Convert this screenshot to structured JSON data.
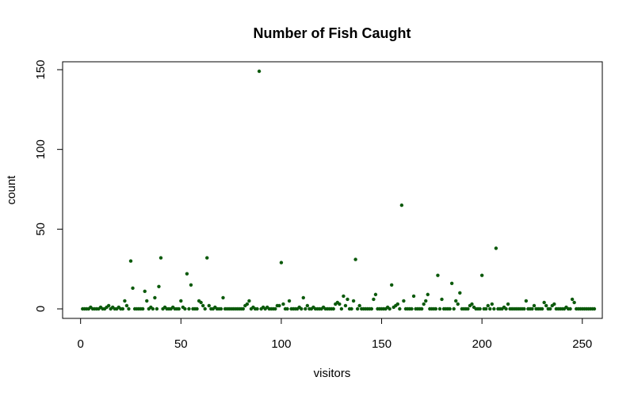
{
  "chart_data": {
    "type": "scatter",
    "title": "Number of Fish Caught",
    "xlabel": "visitors",
    "ylabel": "count",
    "xlim": [
      1,
      250
    ],
    "ylim": [
      0,
      149
    ],
    "x_ticks": [
      0,
      50,
      100,
      150,
      200,
      250
    ],
    "y_ticks": [
      0,
      50,
      100,
      150
    ],
    "grid": false,
    "point_color": "#0b5a0b",
    "series": [
      {
        "values": [
          0,
          0,
          0,
          0,
          1,
          0,
          0,
          0,
          0,
          1,
          0,
          0,
          1,
          2,
          0,
          1,
          0,
          0,
          1,
          0,
          0,
          5,
          2,
          0,
          30,
          13,
          0,
          0,
          0,
          0,
          0,
          11,
          5,
          0,
          1,
          0,
          7,
          0,
          14,
          32,
          0,
          1,
          0,
          0,
          0,
          1,
          0,
          0,
          0,
          5,
          1,
          0,
          22,
          0,
          15,
          0,
          0,
          0,
          5,
          4,
          2,
          0,
          32,
          2,
          0,
          0,
          1,
          0,
          0,
          0,
          7,
          0,
          0,
          0,
          0,
          0,
          0,
          0,
          0,
          0,
          0,
          2,
          3,
          5,
          0,
          1,
          0,
          0,
          149,
          0,
          1,
          0,
          1,
          0,
          0,
          0,
          0,
          2,
          2,
          29,
          3,
          0,
          0,
          5,
          0,
          0,
          0,
          0,
          1,
          0,
          7,
          0,
          2,
          0,
          0,
          1,
          0,
          0,
          0,
          0,
          1,
          0,
          0,
          0,
          0,
          0,
          3,
          4,
          3,
          0,
          8,
          2,
          6,
          0,
          0,
          5,
          31,
          0,
          2,
          0,
          0,
          0,
          0,
          0,
          0,
          6,
          9,
          0,
          0,
          0,
          0,
          0,
          1,
          0,
          15,
          1,
          2,
          3,
          0,
          65,
          5,
          0,
          0,
          0,
          0,
          8,
          0,
          0,
          0,
          0,
          3,
          5,
          9,
          0,
          0,
          0,
          0,
          21,
          0,
          6,
          0,
          0,
          0,
          0,
          16,
          0,
          5,
          3,
          10,
          0,
          0,
          0,
          0,
          2,
          3,
          1,
          0,
          0,
          0,
          21,
          0,
          0,
          2,
          0,
          3,
          0,
          38,
          0,
          0,
          0,
          1,
          0,
          3,
          0,
          0,
          0,
          0,
          0,
          0,
          0,
          0,
          5,
          0,
          0,
          0,
          2,
          0,
          0,
          0,
          0,
          4,
          2,
          0,
          0,
          2,
          3,
          0,
          0,
          0,
          0,
          0,
          1,
          0,
          0,
          6,
          4,
          0,
          0,
          0,
          0,
          0,
          0,
          0,
          0,
          0,
          0
        ]
      }
    ]
  }
}
